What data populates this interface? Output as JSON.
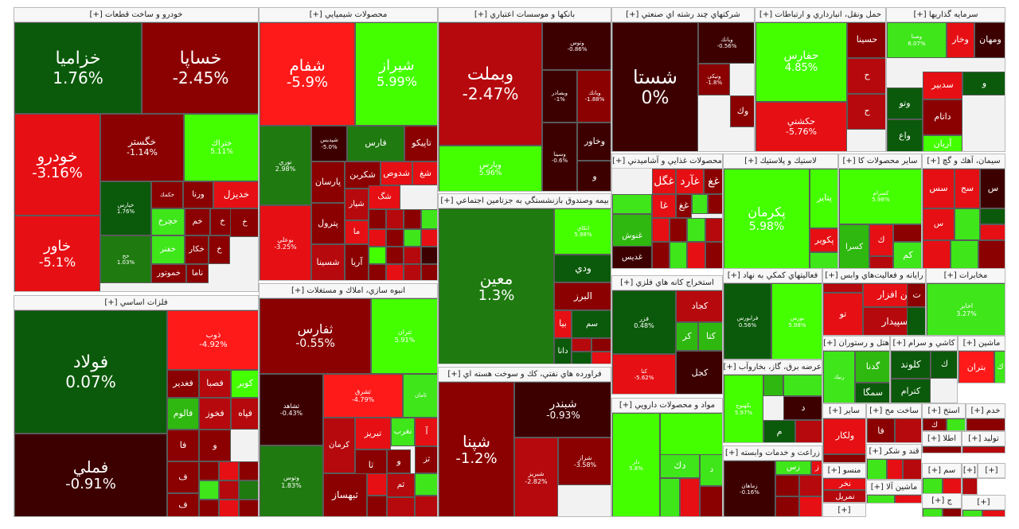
{
  "palette": {
    "dr": "#3d0000",
    "r1": "#8b0000",
    "r2": "#b5090d",
    "r3": "#e60f14",
    "r4": "#ff1a1a",
    "g1": "#0b5a0b",
    "g2": "#1f7a10",
    "g3": "#2fb80f",
    "g4": "#3ee61a",
    "g5": "#44ff00"
  },
  "sectors": [
    {
      "title": "خودرو و ساخت قطعات [+]",
      "tiles": [
        {
          "name": "خزاميا",
          "pct": "1.76%"
        },
        {
          "name": "خساپا",
          "pct": "-2.45%"
        },
        {
          "name": "خودرو",
          "pct": "-3.16%"
        },
        {
          "name": "خگستر",
          "pct": "-1.14%"
        },
        {
          "name": "ختراك",
          "pct": "5.11%"
        },
        {
          "name": "خاور",
          "pct": "-5.1%"
        },
        {
          "name": "خپارس",
          "pct": "1.76%"
        },
        {
          "name": "خكمك",
          "pct": ""
        },
        {
          "name": "ورنا",
          "pct": ""
        },
        {
          "name": "خديزل",
          "pct": ""
        },
        {
          "name": "خخ",
          "pct": "1.03%"
        },
        {
          "name": "خچرخ",
          "pct": ""
        },
        {
          "name": "خم",
          "pct": ""
        },
        {
          "name": "خ",
          "pct": ""
        },
        {
          "name": "خفنر",
          "pct": ""
        },
        {
          "name": "خكار",
          "pct": ""
        },
        {
          "name": "خ",
          "pct": ""
        },
        {
          "name": "خموتور",
          "pct": ""
        },
        {
          "name": "ناما",
          "pct": ""
        },
        {
          "name": "خ",
          "pct": ""
        }
      ]
    },
    {
      "title": "محصولات شيميايي [+]",
      "tiles": [
        {
          "name": "شفام",
          "pct": "-5.9%"
        },
        {
          "name": "شيراز",
          "pct": "5.99%"
        },
        {
          "name": "نوري",
          "pct": "2.98%"
        },
        {
          "name": "شپديس",
          "pct": "-5.0%"
        },
        {
          "name": "فارس",
          "pct": ""
        },
        {
          "name": "تاپيكو",
          "pct": ""
        },
        {
          "name": "پارسان",
          "pct": ""
        },
        {
          "name": "شكربن",
          "pct": ""
        },
        {
          "name": "شدوص",
          "pct": ""
        },
        {
          "name": "شغ",
          "pct": ""
        },
        {
          "name": "بوعلي",
          "pct": "-3.25%"
        },
        {
          "name": "پترول",
          "pct": ""
        },
        {
          "name": "شپار",
          "pct": ""
        },
        {
          "name": "شگ",
          "pct": ""
        },
        {
          "name": "ما",
          "pct": ""
        },
        {
          "name": "شسينا",
          "pct": ""
        },
        {
          "name": "آريا",
          "pct": ""
        }
      ]
    },
    {
      "title": "بانكها و موسسات اعتباري [+]",
      "tiles": [
        {
          "name": "وبملت",
          "pct": "-2.47%"
        },
        {
          "name": "وتوس",
          "pct": "-0.86%"
        },
        {
          "name": "وپارس",
          "pct": "5.96%"
        },
        {
          "name": "وبصادر",
          "pct": "-1%"
        },
        {
          "name": "وبانك",
          "pct": "-1.88%"
        },
        {
          "name": "وخاور",
          "pct": ""
        },
        {
          "name": "وسينا",
          "pct": "-0.6%"
        },
        {
          "name": "و",
          "pct": ""
        }
      ]
    },
    {
      "title": "شركتهاي چند رشته اي صنعتي [+]",
      "tiles": [
        {
          "name": "شستا",
          "pct": "0%"
        },
        {
          "name": "وبانك",
          "pct": "-0.56%"
        },
        {
          "name": "ونيكي",
          "pct": "-1.8%"
        },
        {
          "name": "وك",
          "pct": ""
        }
      ]
    },
    {
      "title": "حمل ونقل، انبارداري و ارتباطات [+]",
      "tiles": [
        {
          "name": "حفارس",
          "pct": "4.85%"
        },
        {
          "name": "حسينا",
          "pct": ""
        },
        {
          "name": "حكشتي",
          "pct": "-5.76%"
        },
        {
          "name": "ح",
          "pct": ""
        },
        {
          "name": "ح",
          "pct": ""
        }
      ]
    },
    {
      "title": "سرمايه گذاريها [+]",
      "tiles": [
        {
          "name": "ومهان",
          "pct": ""
        },
        {
          "name": "وصنا",
          "pct": "6.07%"
        },
        {
          "name": "وخار",
          "pct": ""
        },
        {
          "name": "وتو",
          "pct": ""
        },
        {
          "name": "سدبير",
          "pct": ""
        },
        {
          "name": "و",
          "pct": ""
        },
        {
          "name": "داتام",
          "pct": ""
        },
        {
          "name": "واع",
          "pct": ""
        },
        {
          "name": "آريان",
          "pct": ""
        }
      ]
    },
    {
      "title": "فلزات اساسي [+]",
      "tiles": [
        {
          "name": "فولاد",
          "pct": "0.07%"
        },
        {
          "name": "ذوب",
          "pct": "-4.92%"
        },
        {
          "name": "فغدير",
          "pct": ""
        },
        {
          "name": "فصبا",
          "pct": ""
        },
        {
          "name": "كوير",
          "pct": ""
        },
        {
          "name": "فالوم",
          "pct": ""
        },
        {
          "name": "فخوز",
          "pct": ""
        },
        {
          "name": "فپاه",
          "pct": ""
        },
        {
          "name": "فملي",
          "pct": "-0.91%"
        },
        {
          "name": "فا",
          "pct": ""
        },
        {
          "name": "و",
          "pct": ""
        },
        {
          "name": "ف",
          "pct": ""
        },
        {
          "name": "ف",
          "pct": ""
        }
      ]
    },
    {
      "title": "انبوه سازي، املاك و مستغلات [+]",
      "tiles": [
        {
          "name": "ثفارس",
          "pct": "-0.55%"
        },
        {
          "name": "ثتران",
          "pct": "5.91%"
        },
        {
          "name": "ثشاهد",
          "pct": "-0.43%"
        },
        {
          "name": "ثشرق",
          "pct": "-4.79%"
        },
        {
          "name": "ثامان",
          "pct": ""
        },
        {
          "name": "وتوس",
          "pct": "1.83%"
        },
        {
          "name": "كرمان",
          "pct": ""
        },
        {
          "name": "تبريز",
          "pct": ""
        },
        {
          "name": "نغرب",
          "pct": ""
        },
        {
          "name": "آ",
          "pct": ""
        },
        {
          "name": "ثا",
          "pct": ""
        },
        {
          "name": "و",
          "pct": ""
        },
        {
          "name": "ثبهساز",
          "pct": ""
        },
        {
          "name": "ثم",
          "pct": ""
        },
        {
          "name": "ثز",
          "pct": ""
        }
      ]
    },
    {
      "title": "بيمه وصندوق بازنشستگي به جزتامين اجتماعي [+]",
      "tiles": [
        {
          "name": "معين",
          "pct": "1.3%"
        },
        {
          "name": "اتكاي",
          "pct": "5.98%"
        },
        {
          "name": "ودي",
          "pct": ""
        },
        {
          "name": "البرز",
          "pct": ""
        },
        {
          "name": "بيا",
          "pct": ""
        },
        {
          "name": "سم",
          "pct": ""
        },
        {
          "name": "دانا",
          "pct": ""
        }
      ]
    },
    {
      "title": "فراورده هاي نفتي، كك و سوخت هسته اي [+]",
      "tiles": [
        {
          "name": "شپنا",
          "pct": "-1.2%"
        },
        {
          "name": "شبندر",
          "pct": "-0.93%"
        },
        {
          "name": "شبريز",
          "pct": "-2.82%"
        },
        {
          "name": "شراز",
          "pct": "-3.58%"
        }
      ]
    },
    {
      "title": "محصولات غذايي و آشاميدني [+]",
      "tiles": [
        {
          "name": "غگل",
          "pct": ""
        },
        {
          "name": "غآرد",
          "pct": ""
        },
        {
          "name": "غغ",
          "pct": ""
        },
        {
          "name": "غنوش",
          "pct": ""
        },
        {
          "name": "غديس",
          "pct": ""
        },
        {
          "name": "غا",
          "pct": ""
        },
        {
          "name": "غغ",
          "pct": ""
        }
      ]
    },
    {
      "title": "لاستيك و پلاستيك [+]",
      "tiles": [
        {
          "name": "پكرمان",
          "pct": "5.98%"
        },
        {
          "name": "پتاير",
          "pct": ""
        },
        {
          "name": "پكوير",
          "pct": ""
        }
      ]
    },
    {
      "title": "ساير محصولات كا [+]",
      "tiles": [
        {
          "name": "كسرام",
          "pct": "5.98%"
        },
        {
          "name": "كسرا",
          "pct": ""
        },
        {
          "name": "ك",
          "pct": ""
        },
        {
          "name": "كم",
          "pct": ""
        }
      ]
    },
    {
      "title": "سيمان، آهك و گچ [+]",
      "tiles": [
        {
          "name": "سس",
          "pct": ""
        },
        {
          "name": "سج",
          "pct": ""
        },
        {
          "name": "س",
          "pct": ""
        },
        {
          "name": "س",
          "pct": ""
        }
      ]
    },
    {
      "title": "استخراج كانه هاي فلزي [+]",
      "tiles": [
        {
          "name": "فزر",
          "pct": "0.48%"
        },
        {
          "name": "كجاد",
          "pct": ""
        },
        {
          "name": "كتا",
          "pct": ""
        },
        {
          "name": "كر",
          "pct": ""
        },
        {
          "name": "كنا",
          "pct": "-5.62%"
        },
        {
          "name": "كجل",
          "pct": ""
        }
      ]
    },
    {
      "title": "فعاليتهاي كمكي به نهاد [+]",
      "tiles": [
        {
          "name": "فرابورس",
          "pct": "0.56%"
        },
        {
          "name": "بورس",
          "pct": "5.98%"
        }
      ]
    },
    {
      "title": "رايانه و فعاليت‌هاي وابس [+]",
      "tiles": [
        {
          "name": "فن افزار",
          "pct": ""
        },
        {
          "name": "تو",
          "pct": ""
        },
        {
          "name": "سپيدار",
          "pct": ""
        },
        {
          "name": "ت",
          "pct": ""
        }
      ]
    },
    {
      "title": "مخابرات [+]",
      "tiles": [
        {
          "name": "اخابر",
          "pct": "3.27%"
        }
      ]
    },
    {
      "title": "عرضه برق، گاز، بخاروآب [+]",
      "tiles": [
        {
          "name": "بكهنوج",
          "pct": "5.97%"
        },
        {
          "name": "د",
          "pct": ""
        },
        {
          "name": "م",
          "pct": ""
        }
      ]
    },
    {
      "title": "هتل و رستوران [+]",
      "tiles": [
        {
          "name": "گدنا",
          "pct": ""
        },
        {
          "name": "سمگا",
          "pct": ""
        },
        {
          "name": "رنيك",
          "pct": ""
        }
      ]
    },
    {
      "title": "كاشي و سرام [+]",
      "tiles": [
        {
          "name": "كلوند",
          "pct": ""
        },
        {
          "name": "كترام",
          "pct": ""
        },
        {
          "name": "ك",
          "pct": ""
        }
      ]
    },
    {
      "title": "ماشين [+]",
      "tiles": [
        {
          "name": "بتران",
          "pct": ""
        },
        {
          "name": "ك",
          "pct": ""
        }
      ]
    },
    {
      "title": "مواد و محصولات دارويي [+]",
      "tiles": [
        {
          "name": "دامين",
          "pct": "6%"
        },
        {
          "name": "دك",
          "pct": ""
        },
        {
          "name": "دلر",
          "pct": "5.8%"
        },
        {
          "name": "د",
          "pct": ""
        }
      ]
    },
    {
      "title": "زراعت و خدمات وابسته [+]",
      "tiles": [
        {
          "name": "زماهان",
          "pct": "-0.16%"
        },
        {
          "name": "زس",
          "pct": ""
        },
        {
          "name": "ز",
          "pct": ""
        }
      ]
    },
    {
      "title": "ساير [+]",
      "tiles": [
        {
          "name": "ولكار",
          "pct": ""
        }
      ]
    },
    {
      "title": "ساخت مح [+]",
      "tiles": [
        {
          "name": "فا",
          "pct": ""
        }
      ]
    },
    {
      "title": "استخ [+]",
      "tiles": [
        {
          "name": "ك",
          "pct": ""
        }
      ]
    },
    {
      "title": "خدم [+]",
      "tiles": []
    },
    {
      "title": "منسو [+]",
      "tiles": [
        {
          "name": "نخر",
          "pct": ""
        },
        {
          "name": "نمريل",
          "pct": ""
        }
      ]
    },
    {
      "title": "قند و شكر [+]",
      "tiles": []
    },
    {
      "title": "ماشين آلا [+]",
      "tiles": []
    },
    {
      "title": "اطلا [+]",
      "tiles": []
    },
    {
      "title": "توليد [+]",
      "tiles": []
    },
    {
      "title": "سم [+]",
      "tiles": []
    },
    {
      "title": "ج [+]",
      "tiles": []
    },
    {
      "title": "[+]",
      "tiles": []
    },
    {
      "title": "[+]",
      "tiles": []
    },
    {
      "title": "[+]",
      "tiles": []
    },
    {
      "title": "[+]",
      "tiles": []
    }
  ]
}
